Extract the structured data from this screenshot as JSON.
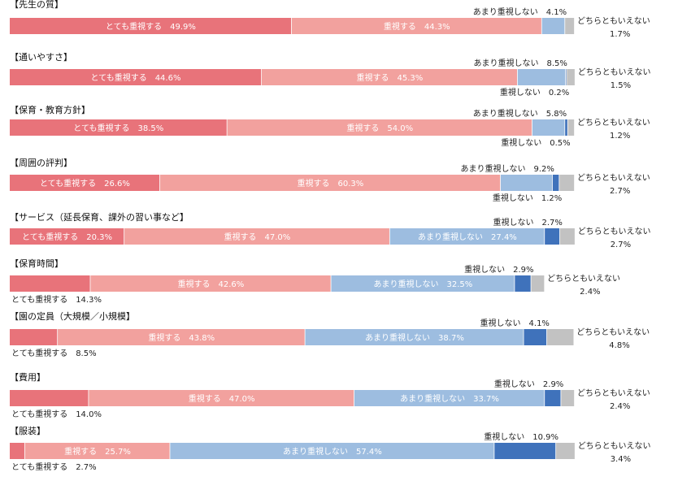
{
  "chart_data": {
    "type": "bar",
    "orientation": "horizontal-stacked-100",
    "title": "",
    "xlabel": "",
    "ylabel": "",
    "xlim": [
      0,
      100
    ],
    "grid": false,
    "legend": "none",
    "series": [
      {
        "key": "s1",
        "name": "とても重視する",
        "color": "#e8737a"
      },
      {
        "key": "s2",
        "name": "重視する",
        "color": "#f2a19e"
      },
      {
        "key": "s3",
        "name": "あまり重視しない",
        "color": "#9dbde0"
      },
      {
        "key": "s4",
        "name": "重視しない",
        "color": "#3f72bb"
      },
      {
        "key": "s5",
        "name": "どちらともいえない",
        "color": "#c2c2c2"
      }
    ],
    "categories": [
      {
        "title": "【先生の質】",
        "values": [
          49.9,
          44.3,
          4.1,
          0,
          1.7
        ],
        "labels": [
          "とても重視する　49.9%",
          "重視する　44.3%",
          "あまり重視しない　4.1%",
          "",
          "どちらともいえない\n1.7%"
        ]
      },
      {
        "title": "【通いやすさ】",
        "values": [
          44.6,
          45.3,
          8.5,
          0.2,
          1.5
        ],
        "labels": [
          "とても重視する　44.6%",
          "重視する　45.3%",
          "あまり重視しない　8.5%",
          "重視しない　0.2%",
          "どちらともいえない\n1.5%"
        ]
      },
      {
        "title": "【保育・教育方針】",
        "values": [
          38.5,
          54.0,
          5.8,
          0.5,
          1.2
        ],
        "labels": [
          "とても重視する　38.5%",
          "重視する　54.0%",
          "あまり重視しない　5.8%",
          "重視しない　0.5%",
          "どちらともいえない\n1.2%"
        ]
      },
      {
        "title": "【周囲の評判】",
        "values": [
          26.6,
          60.3,
          9.2,
          1.2,
          2.7
        ],
        "labels": [
          "とても重視する　26.6%",
          "重視する　60.3%",
          "あまり重視しない　9.2%",
          "重視しない　1.2%",
          "どちらともいえない\n2.7%"
        ]
      },
      {
        "title": "【サービス（延長保育、課外の習い事など】",
        "values": [
          20.3,
          47.0,
          27.4,
          2.7,
          2.7
        ],
        "labels": [
          "とても重視する　20.3%",
          "重視する　47.0%",
          "あまり重視しない　27.4%",
          "重視しない　2.7%",
          "どちらともいえない\n2.7%"
        ]
      },
      {
        "title": "【保育時間】",
        "values": [
          14.3,
          42.6,
          32.5,
          2.9,
          2.4
        ],
        "labels": [
          "とても重視する　14.3%",
          "重視する　42.6%",
          "あまり重視しない　32.5%",
          "重視しない　2.9%",
          "どちらともいえない\n2.4%"
        ]
      },
      {
        "title": "【園の定員（大規模／小規模】",
        "values": [
          8.5,
          43.8,
          38.7,
          4.1,
          4.8
        ],
        "labels": [
          "とても重視する　8.5%",
          "重視する　43.8%",
          "あまり重視しない　38.7%",
          "重視しない　4.1%",
          "どちらともいえない\n4.8%"
        ]
      },
      {
        "title": "【費用】",
        "values": [
          14.0,
          47.0,
          33.7,
          2.9,
          2.4
        ],
        "labels": [
          "とても重視する　14.0%",
          "重視する　47.0%",
          "あまり重視しない　33.7%",
          "重視しない　2.9%",
          "どちらともいえない\n2.4%"
        ]
      },
      {
        "title": "【服装】",
        "values": [
          2.7,
          25.7,
          57.4,
          10.9,
          3.4
        ],
        "labels": [
          "とても重視する　2.7%",
          "重視する　25.7%",
          "あまり重視しない　57.4%",
          "重視しない　10.9%",
          "どちらともいえない\n3.4%"
        ]
      }
    ]
  }
}
